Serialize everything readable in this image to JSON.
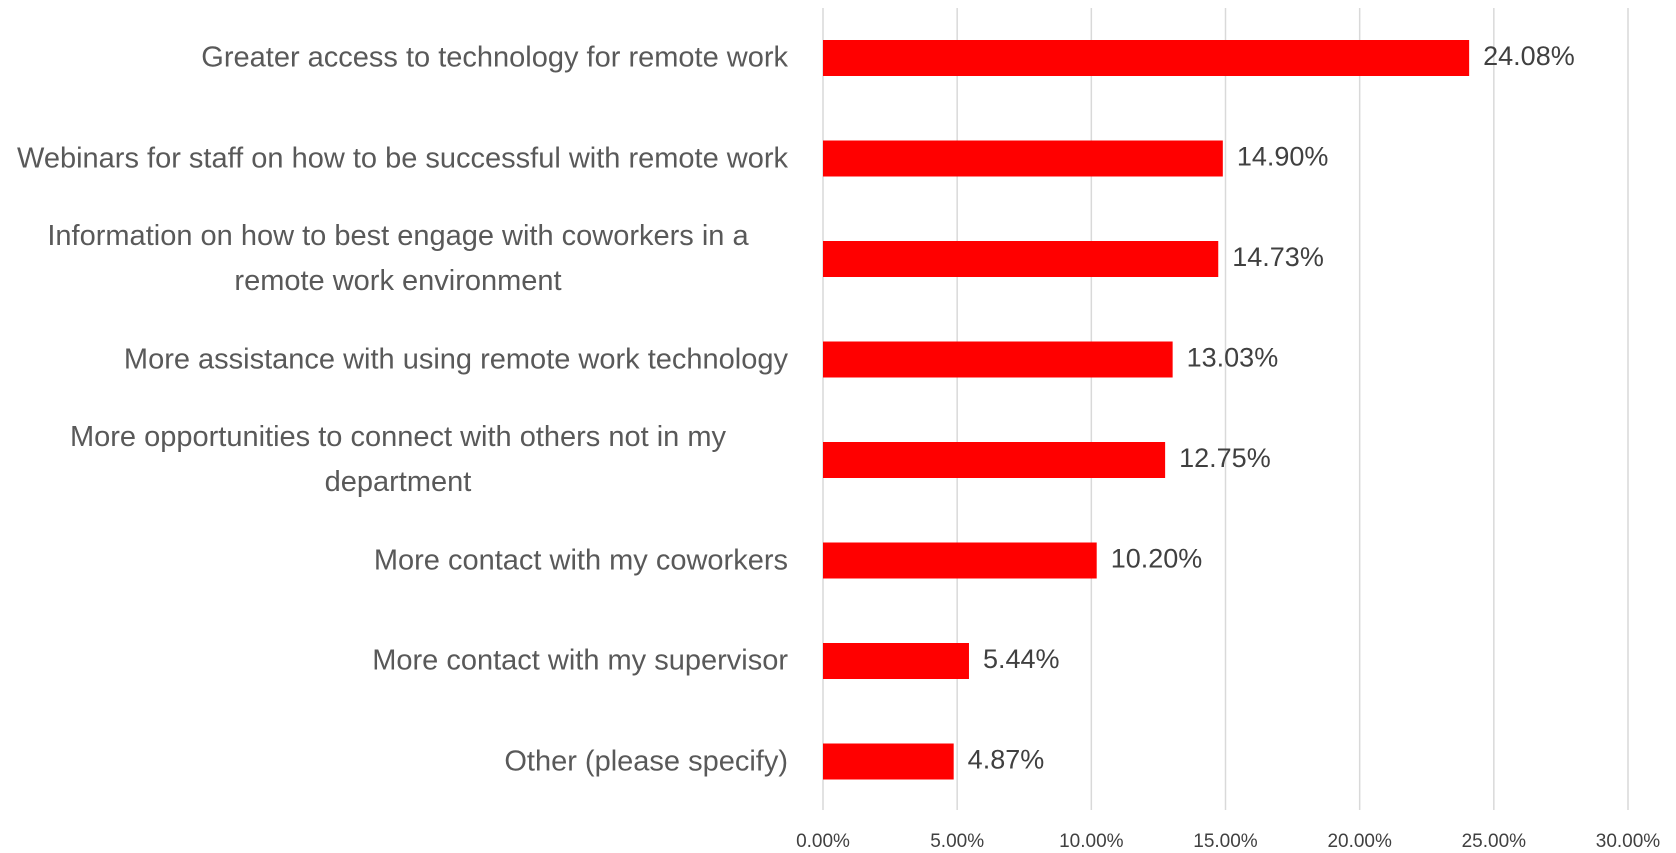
{
  "chart_data": {
    "type": "bar",
    "orientation": "horizontal",
    "categories": [
      "Greater access to technology for remote work",
      "Webinars for staff on how to be successful with remote work",
      "Information on how to best engage with coworkers in a remote work environment",
      "More assistance with using remote work technology",
      "More opportunities to connect with others not in my department",
      "More contact with my coworkers",
      "More contact with my supervisor",
      "Other (please specify)"
    ],
    "values": [
      24.08,
      14.9,
      14.73,
      13.03,
      12.75,
      10.2,
      5.44,
      4.87
    ],
    "value_labels": [
      "24.08%",
      "14.90%",
      "14.73%",
      "13.03%",
      "12.75%",
      "10.20%",
      "5.44%",
      "4.87%"
    ],
    "color": "#ff0000",
    "xlim": [
      0,
      30
    ],
    "xticks": [
      {
        "value": 0,
        "label": "0.00%"
      },
      {
        "value": 5,
        "label": "5.00%"
      },
      {
        "value": 10,
        "label": "10.00%"
      },
      {
        "value": 15,
        "label": "15.00%"
      },
      {
        "value": 20,
        "label": "20.00%"
      },
      {
        "value": 25,
        "label": "25.00%"
      },
      {
        "value": 30,
        "label": "30.00%"
      }
    ],
    "grid": true
  }
}
